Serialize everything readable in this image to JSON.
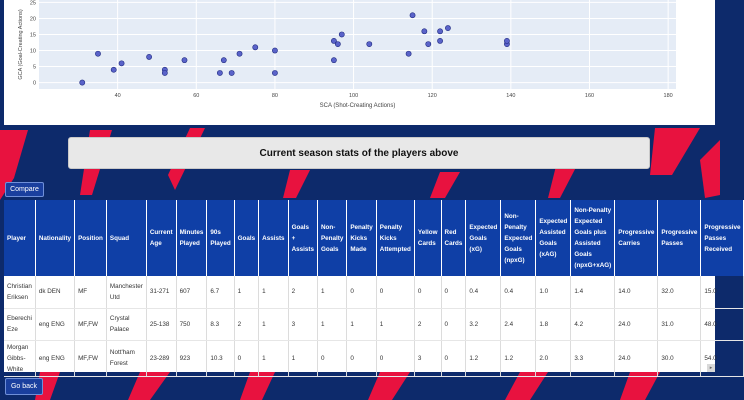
{
  "chart_data": {
    "type": "scatter",
    "xlabel": "SCA (Shot-Creating Actions)",
    "ylabel": "GCA (Goal-Creating Actions)",
    "xlim": [
      20,
      182
    ],
    "ylim": [
      -2,
      27
    ],
    "x_ticks": [
      "40",
      "60",
      "80",
      "100",
      "120",
      "140",
      "160",
      "180"
    ],
    "y_ticks": [
      "0",
      "5",
      "10",
      "15",
      "20",
      "25"
    ],
    "marker_color": "#5a63c9",
    "points": [
      [
        31,
        0
      ],
      [
        35,
        9
      ],
      [
        39,
        4
      ],
      [
        41,
        6
      ],
      [
        48,
        8
      ],
      [
        52,
        4
      ],
      [
        52,
        3
      ],
      [
        57,
        7
      ],
      [
        66,
        3
      ],
      [
        67,
        7
      ],
      [
        69,
        3
      ],
      [
        71,
        9
      ],
      [
        75,
        11
      ],
      [
        80,
        3
      ],
      [
        80,
        10
      ],
      [
        95,
        7
      ],
      [
        95,
        13
      ],
      [
        96,
        12
      ],
      [
        97,
        15
      ],
      [
        104,
        12
      ],
      [
        114,
        9
      ],
      [
        115,
        21
      ],
      [
        118,
        16
      ],
      [
        119,
        12
      ],
      [
        122,
        13
      ],
      [
        122,
        16
      ],
      [
        124,
        17
      ],
      [
        139,
        12
      ],
      [
        139,
        13
      ]
    ]
  },
  "banner": {
    "title": "Current season stats of the players above"
  },
  "buttons": {
    "compare": "Compare",
    "back": "Go back"
  },
  "table": {
    "columns": [
      "Player",
      "Nationality",
      "Position",
      "Squad",
      "Current Age",
      "Minutes Played",
      "90s Played",
      "Goals",
      "Assists",
      "Goals + Assists",
      "Non-Penalty Goals",
      "Penalty Kicks Made",
      "Penalty Kicks Attempted",
      "Yellow Cards",
      "Red Cards",
      "Expected Goals (xG)",
      "Non-Penalty Expected Goals (npxG)",
      "Expected Assisted Goals (xAG)",
      "Non-Penalty Expected Goals plus Assisted Goals (npxG+xAG)",
      "Progressive Carries",
      "Progressive Passes",
      "Progressive Passes Received"
    ],
    "rows": [
      [
        "Christian Eriksen",
        "dk DEN",
        "MF",
        "Manchester Utd",
        "31-271",
        "607",
        "6.7",
        "1",
        "1",
        "2",
        "1",
        "0",
        "0",
        "0",
        "0",
        "0.4",
        "0.4",
        "1.0",
        "1.4",
        "14.0",
        "32.0",
        "15.0"
      ],
      [
        "Eberechi Eze",
        "eng ENG",
        "MF,FW",
        "Crystal Palace",
        "25-138",
        "750",
        "8.3",
        "2",
        "1",
        "3",
        "1",
        "1",
        "1",
        "2",
        "0",
        "3.2",
        "2.4",
        "1.8",
        "4.2",
        "24.0",
        "31.0",
        "48.0"
      ],
      [
        "Morgan Gibbs-White",
        "eng ENG",
        "MF,FW",
        "Nott'ham Forest",
        "23-289",
        "923",
        "10.3",
        "0",
        "1",
        "1",
        "0",
        "0",
        "0",
        "3",
        "0",
        "1.2",
        "1.2",
        "2.0",
        "3.3",
        "24.0",
        "30.0",
        "54.0"
      ]
    ]
  }
}
